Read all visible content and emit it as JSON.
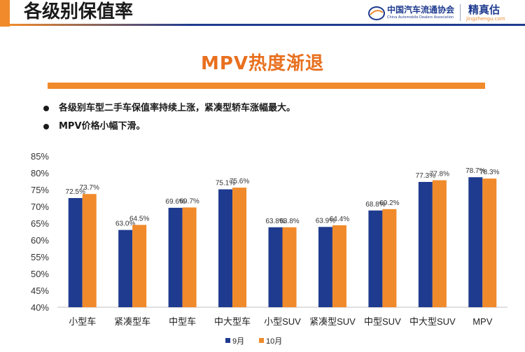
{
  "header": {
    "title": "各级别保值率",
    "org_name": "中国汽车流通协会",
    "org_sub": "China Automobile Dealers Association",
    "brand_name": "精真估",
    "brand_url": "jingzhengu.com"
  },
  "headline": "MPV热度渐退",
  "bullets": [
    "各级别车型二手车保值率持续上涨，紧凑型轿车涨幅最大。",
    "MPV价格小幅下滑。"
  ],
  "colors": {
    "series_sep": "#1f3b8f",
    "series_oct": "#f08a2b",
    "headline": "#e8701f"
  },
  "chart_data": {
    "type": "bar",
    "categories": [
      "小型车",
      "紧凑型车",
      "中型车",
      "中大型车",
      "小型SUV",
      "紧凑型SUV",
      "中型SUV",
      "中大型SUV",
      "MPV"
    ],
    "series": [
      {
        "name": "9月",
        "values": [
          72.5,
          63.0,
          69.6,
          75.1,
          63.8,
          63.9,
          68.8,
          77.3,
          78.7
        ],
        "labels": [
          "72.5%",
          "63.0%",
          "69.6%",
          "75.1%",
          "63.8%",
          "63.9%",
          "68.8%",
          "77.3%",
          "78.7%"
        ]
      },
      {
        "name": "10月",
        "values": [
          73.7,
          64.5,
          69.7,
          75.6,
          63.8,
          64.4,
          69.2,
          77.8,
          78.3
        ],
        "labels": [
          "73.7%",
          "64.5%",
          "69.7%",
          "75.6%",
          "63.8%",
          "64.4%",
          "69.2%",
          "77.8%",
          "78.3%"
        ]
      }
    ],
    "ylim": [
      40,
      85
    ],
    "yticks": [
      "40%",
      "45%",
      "50%",
      "55%",
      "60%",
      "65%",
      "70%",
      "75%",
      "80%",
      "85%"
    ],
    "ytick_values": [
      40,
      45,
      50,
      55,
      60,
      65,
      70,
      75,
      80,
      85
    ],
    "grid": false,
    "legend": "bottom"
  }
}
